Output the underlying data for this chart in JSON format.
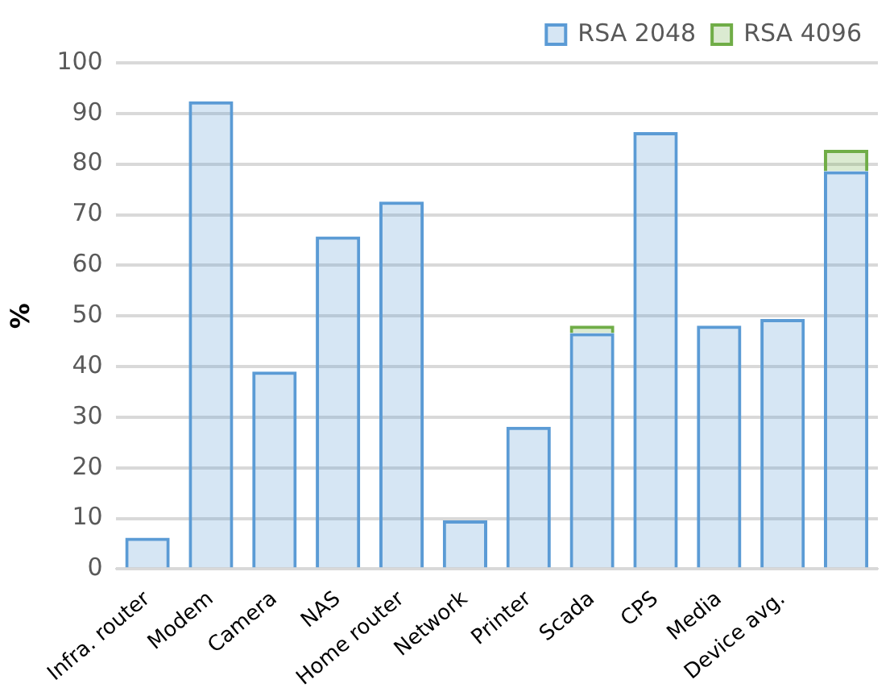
{
  "chart_data": {
    "type": "bar",
    "stacked": true,
    "ylabel": "%",
    "categories": [
      "Infra. router",
      "Modem",
      "Camera",
      "NAS",
      "Home router",
      "Network",
      "Printer",
      "Scada",
      "CPS",
      "Media",
      "Device avg.",
      null
    ],
    "series": [
      {
        "name": "RSA 2048",
        "color": "#5b9bd5",
        "values": [
          6.2,
          92.4,
          39,
          65.7,
          72.6,
          9.6,
          28.1,
          46.6,
          86.3,
          48.1,
          49.4,
          78.6
        ]
      },
      {
        "name": "RSA 4096",
        "color": "#70ad47",
        "values": [
          0,
          0,
          0,
          0,
          0,
          0,
          0,
          1.5,
          0,
          0,
          0,
          4.2
        ]
      }
    ],
    "ylim": [
      0,
      100
    ],
    "yticks": [
      0,
      10,
      20,
      30,
      40,
      50,
      60,
      70,
      80,
      90,
      100
    ],
    "grid": "y",
    "legend": "top right"
  }
}
